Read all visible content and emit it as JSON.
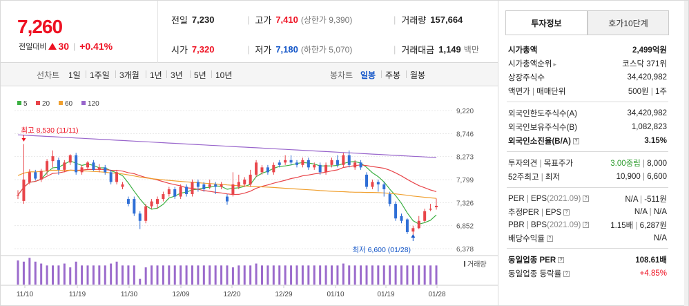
{
  "summary": {
    "current_price": "7,260",
    "change_label": "전일대비",
    "change_value": "30",
    "change_pct": "+0.41%",
    "quotes": [
      {
        "k": "전일",
        "v": "7,230",
        "color": "",
        "s": ""
      },
      {
        "k": "고가",
        "v": "7,410",
        "color": "red",
        "s": "(상한가 9,390)"
      },
      {
        "k": "거래량",
        "v": "157,664",
        "color": "",
        "s": ""
      },
      {
        "k": "시가",
        "v": "7,320",
        "color": "red",
        "s": ""
      },
      {
        "k": "저가",
        "v": "7,180",
        "color": "blue",
        "s": "(하한가 5,070)"
      },
      {
        "k": "거래대금",
        "v": "1,149",
        "color": "",
        "s": "백만"
      }
    ]
  },
  "toolbar": {
    "line_label": "선차트",
    "periods": [
      "1일",
      "1주일",
      "3개월",
      "1년",
      "3년",
      "5년",
      "10년"
    ],
    "candle_label": "봉차트",
    "candle_periods": [
      "일봉",
      "주봉",
      "월봉"
    ],
    "active_candle": "일봉"
  },
  "chart_data": {
    "type": "candlestick",
    "legend": [
      {
        "name": "5",
        "color": "#3cb043"
      },
      {
        "name": "20",
        "color": "#e8454a"
      },
      {
        "name": "60",
        "color": "#f0a030"
      },
      {
        "name": "120",
        "color": "#9966cc"
      }
    ],
    "y_ticks": [
      "9,220",
      "8,746",
      "8,273",
      "7,799",
      "7,326",
      "6,852",
      "6,378"
    ],
    "ylim": [
      6378,
      9220
    ],
    "x_ticks": [
      "11/10",
      "11/19",
      "11/30",
      "12/09",
      "12/20",
      "12/29",
      "01/10",
      "01/19",
      "01/28"
    ],
    "high_annotation": "최고 8,530 (11/11)",
    "low_annotation": "최저 6,600 (01/28)",
    "volume_label": "거래량",
    "colors": {
      "up": "#e8454a",
      "down": "#2f6fd6",
      "volume": "#9b6bcc"
    },
    "candles": [
      [
        7480,
        7480,
        7580,
        7400,
        7260
      ],
      [
        7360,
        7800,
        8530,
        7300,
        7200
      ],
      [
        7740,
        7950,
        8010,
        7700,
        7400
      ],
      [
        7950,
        7820,
        8000,
        7780,
        7200
      ],
      [
        7800,
        7980,
        8020,
        7750,
        7100
      ],
      [
        7980,
        8180,
        8220,
        7900,
        7000
      ],
      [
        8180,
        8280,
        8400,
        8050,
        7000
      ],
      [
        8200,
        8000,
        8250,
        7900,
        7000
      ],
      [
        8000,
        8150,
        8200,
        7950,
        7100
      ],
      [
        8150,
        8300,
        8320,
        8100,
        6900
      ],
      [
        8300,
        7950,
        8350,
        7900,
        7200
      ],
      [
        7950,
        8050,
        8100,
        7900,
        7000
      ],
      [
        8050,
        8150,
        8180,
        8000,
        7000
      ],
      [
        8150,
        8000,
        8200,
        7980,
        7000
      ],
      [
        8000,
        8050,
        8120,
        7950,
        7000
      ],
      [
        8050,
        7950,
        8100,
        7900,
        7000
      ],
      [
        7950,
        7750,
        8000,
        7700,
        7100
      ],
      [
        7750,
        7950,
        8000,
        7700,
        7200
      ],
      [
        7650,
        7700,
        7750,
        7600,
        7000
      ],
      [
        7400,
        7300,
        7450,
        7250,
        7000
      ],
      [
        7400,
        7100,
        7450,
        7050,
        7000
      ],
      [
        7100,
        6950,
        7150,
        6780,
        6300
      ],
      [
        6950,
        7250,
        7300,
        6900,
        6900
      ],
      [
        7250,
        7350,
        7400,
        7200,
        7000
      ],
      [
        7300,
        7400,
        7450,
        7200,
        7000
      ],
      [
        7400,
        7500,
        7550,
        7350,
        7000
      ],
      [
        7500,
        7600,
        7650,
        7450,
        7000
      ],
      [
        7600,
        7450,
        7650,
        7400,
        7000
      ],
      [
        7450,
        7650,
        7700,
        7400,
        7000
      ],
      [
        7650,
        7500,
        7700,
        7450,
        7000
      ],
      [
        7500,
        7750,
        7800,
        7450,
        7000
      ],
      [
        7750,
        7650,
        7800,
        7550,
        7000
      ],
      [
        7700,
        7600,
        7750,
        7550,
        7000
      ],
      [
        7650,
        7700,
        7800,
        7600,
        7000
      ],
      [
        7700,
        7650,
        7750,
        7500,
        7000
      ],
      [
        7650,
        7700,
        7750,
        7600,
        7000
      ],
      [
        7450,
        7350,
        7500,
        7280,
        7000
      ],
      [
        7500,
        7700,
        7950,
        7450,
        6900
      ],
      [
        7650,
        7750,
        7900,
        7600,
        7000
      ],
      [
        7700,
        7800,
        7850,
        7650,
        7000
      ],
      [
        7700,
        7900,
        8000,
        7650,
        7000
      ],
      [
        7900,
        8150,
        8200,
        7850,
        7100
      ],
      [
        7950,
        8050,
        8100,
        7900,
        7000
      ],
      [
        8050,
        7950,
        8100,
        7900,
        7000
      ],
      [
        7950,
        8100,
        8150,
        7900,
        7000
      ],
      [
        8150,
        8100,
        8200,
        8050,
        7000
      ],
      [
        8150,
        8200,
        8300,
        8100,
        7000
      ],
      [
        8200,
        8150,
        8300,
        8100,
        7000
      ],
      [
        8150,
        8100,
        8200,
        8050,
        7000
      ],
      [
        8100,
        8200,
        8250,
        8050,
        7000
      ],
      [
        8200,
        8050,
        8250,
        8000,
        7000
      ],
      [
        8050,
        8100,
        8150,
        8000,
        7000
      ],
      [
        8100,
        7950,
        8150,
        7900,
        7000
      ],
      [
        7950,
        8100,
        8150,
        7900,
        7000
      ],
      [
        8100,
        8200,
        8250,
        8050,
        7000
      ],
      [
        8200,
        8100,
        8300,
        8050,
        7000
      ],
      [
        8100,
        8300,
        8350,
        8050,
        7100
      ],
      [
        8300,
        8100,
        8400,
        8050,
        7000
      ],
      [
        8050,
        8150,
        8200,
        8000,
        7000
      ],
      [
        8150,
        8050,
        8200,
        8000,
        7000
      ],
      [
        7900,
        7650,
        7950,
        7600,
        7000
      ],
      [
        7650,
        7750,
        7800,
        7600,
        7000
      ],
      [
        7750,
        7700,
        7800,
        7550,
        7000
      ],
      [
        7700,
        7600,
        7750,
        7450,
        7000
      ],
      [
        7500,
        7300,
        7550,
        7250,
        7000
      ],
      [
        7300,
        7000,
        7350,
        6950,
        7000
      ],
      [
        7050,
        6950,
        7100,
        6900,
        7000
      ],
      [
        6980,
        6720,
        7000,
        6680,
        7000
      ],
      [
        6730,
        6800,
        6850,
        6600,
        7000
      ],
      [
        6800,
        6950,
        7050,
        6780,
        7000
      ],
      [
        6950,
        7150,
        7200,
        6920,
        7000
      ],
      [
        7180,
        7200,
        7300,
        7150,
        7000
      ],
      [
        7230,
        7260,
        7410,
        7180,
        7000
      ]
    ]
  },
  "tabs": [
    "투자정보",
    "호가10단계"
  ],
  "info": {
    "group1": [
      {
        "k": "시가총액",
        "v": "2,499억원",
        "kb": true,
        "vb": true
      },
      {
        "k": "시가총액순위",
        "v": "코스닥 371위",
        "arrow": true
      },
      {
        "k": "상장주식수",
        "v": "34,420,982"
      },
      {
        "k": "액면가",
        "k2": "매매단위",
        "v": "500원",
        "v2": "1주"
      }
    ],
    "group2": [
      {
        "k": "외국인한도주식수(A)",
        "v": "34,420,982"
      },
      {
        "k": "외국인보유주식수(B)",
        "v": "1,082,823"
      },
      {
        "k": "외국인소진율(B/A)",
        "v": "3.15%",
        "kb": true,
        "vb": true,
        "help": true
      }
    ],
    "group3": [
      {
        "k": "투자의견",
        "k2": "목표주가",
        "v": "3.00중립",
        "v2": "8,000",
        "vgreen": true
      },
      {
        "k": "52주최고",
        "k2": "최저",
        "v": "10,900",
        "v2": "6,600"
      }
    ],
    "group4": [
      {
        "k": "PER",
        "k2": "EPS",
        "k3": "(2021.09)",
        "v": "N/A",
        "v2": "-511원",
        "help": true
      },
      {
        "k": "추정PER",
        "k2": "EPS",
        "v": "N/A",
        "v2": "N/A",
        "help": true
      },
      {
        "k": "PBR",
        "k2": "BPS",
        "k3": "(2021.09)",
        "v": "1.15배",
        "v2": "6,287원",
        "help": true
      },
      {
        "k": "배당수익률",
        "v": "N/A",
        "help": true
      }
    ],
    "group5": [
      {
        "k": "동일업종 PER",
        "v": "108.61배",
        "kb": true,
        "vb": true,
        "help": true
      },
      {
        "k": "동일업종 등락률",
        "v": "+4.85%",
        "vred": true,
        "help": true
      }
    ]
  }
}
